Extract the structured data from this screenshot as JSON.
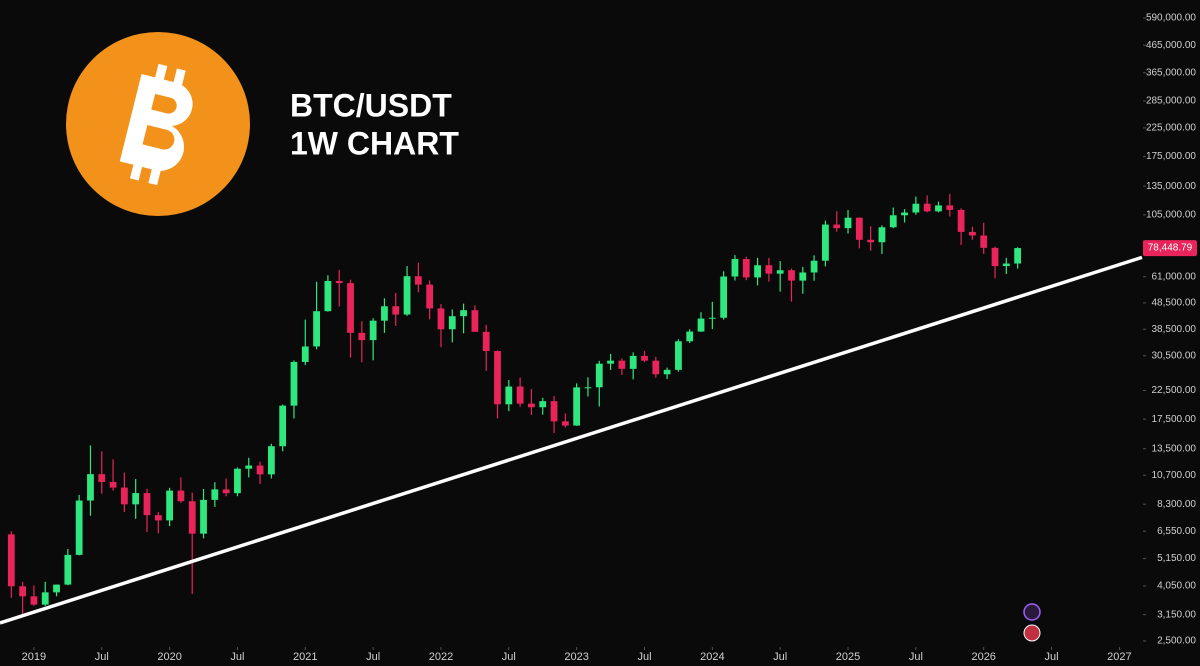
{
  "chart_data": {
    "type": "candlestick",
    "title": "BTC/USDT",
    "subtitle": "1W CHART",
    "log_scale": true,
    "up_color": "#2ee87f",
    "down_color": "#e8245a",
    "x": [
      "2018-11",
      "2018-12",
      "2019-01",
      "2019-02",
      "2019-03",
      "2019-04",
      "2019-05",
      "2019-06",
      "2019-07",
      "2019-08",
      "2019-09",
      "2019-10",
      "2019-11",
      "2019-12",
      "2020-01",
      "2020-02",
      "2020-03",
      "2020-04",
      "2020-05",
      "2020-06",
      "2020-07",
      "2020-08",
      "2020-09",
      "2020-10",
      "2020-11",
      "2020-12",
      "2021-01",
      "2021-02",
      "2021-03",
      "2021-04",
      "2021-05",
      "2021-06",
      "2021-07",
      "2021-08",
      "2021-09",
      "2021-10",
      "2021-11",
      "2021-12",
      "2022-01",
      "2022-02",
      "2022-03",
      "2022-04",
      "2022-05",
      "2022-06",
      "2022-07",
      "2022-08",
      "2022-09",
      "2022-10",
      "2022-11",
      "2022-12",
      "2023-01",
      "2023-02",
      "2023-03",
      "2023-04",
      "2023-05",
      "2023-06",
      "2023-07",
      "2023-08",
      "2023-09",
      "2023-10",
      "2023-11",
      "2023-12",
      "2024-01",
      "2024-02",
      "2024-03",
      "2024-04",
      "2024-05",
      "2024-06",
      "2024-07",
      "2024-08",
      "2024-09",
      "2024-10",
      "2024-11",
      "2024-12",
      "2025-01",
      "2025-02",
      "2025-03",
      "2025-04",
      "2025-05",
      "2025-06",
      "2025-07",
      "2025-08",
      "2025-09",
      "2025-10",
      "2025-11",
      "2025-12",
      "2026-01",
      "2026-02",
      "2026-03",
      "2026-04"
    ],
    "open": [
      6370,
      4040,
      3700,
      3440,
      3830,
      4100,
      5320,
      8570,
      10800,
      10080,
      9600,
      8290,
      9150,
      7540,
      7200,
      9350,
      8520,
      6410,
      8620,
      9450,
      9140,
      11330,
      11650,
      10780,
      13800,
      19700,
      28900,
      33100,
      45100,
      58800,
      57700,
      37300,
      35000,
      41500,
      47100,
      43800,
      61300,
      56950,
      46200,
      38480,
      43160,
      45510,
      37630,
      31800,
      19930,
      23290,
      20050,
      19420,
      20490,
      17160,
      16540,
      23120,
      23140,
      28460,
      29230,
      27200,
      30470,
      29230,
      25930,
      26960,
      34640,
      37720,
      42280,
      42580,
      61130,
      71280,
      60640,
      67490,
      62680,
      64600,
      58970,
      63330,
      70210,
      96410,
      93430,
      102400,
      84350,
      82550,
      94170,
      104600,
      107150,
      115760,
      108250,
      114050,
      109600,
      90400,
      87600,
      78600,
      67000,
      68500
    ],
    "high": [
      6550,
      4200,
      4070,
      4200,
      4100,
      5600,
      9000,
      13900,
      13200,
      12300,
      10950,
      10350,
      9500,
      7750,
      9580,
      10500,
      9190,
      9480,
      10070,
      10400,
      11450,
      12470,
      12050,
      14100,
      19900,
      29300,
      41900,
      58400,
      61800,
      64800,
      59500,
      41300,
      42400,
      50500,
      52900,
      67000,
      69000,
      59050,
      47990,
      45800,
      48200,
      47450,
      40000,
      31950,
      24670,
      25200,
      22800,
      21100,
      21450,
      18400,
      23950,
      25250,
      29180,
      31000,
      29820,
      31430,
      31800,
      30200,
      27500,
      35280,
      38450,
      44700,
      48970,
      64000,
      73780,
      72800,
      71950,
      72000,
      70000,
      65600,
      66500,
      73620,
      99800,
      108350,
      109580,
      102750,
      95000,
      95750,
      111980,
      110400,
      123200,
      124500,
      117900,
      126200,
      111200,
      94600,
      97900,
      79500,
      72000,
      79000
    ],
    "low": [
      3650,
      3150,
      3400,
      3400,
      3700,
      4080,
      5300,
      7500,
      9100,
      9350,
      7750,
      7300,
      6500,
      6430,
      6850,
      8400,
      3780,
      6150,
      8100,
      8900,
      8900,
      10500,
      9900,
      10400,
      13200,
      17600,
      28100,
      32300,
      44900,
      47000,
      30000,
      28800,
      29300,
      37300,
      39600,
      43300,
      53250,
      42000,
      32900,
      34300,
      37150,
      37700,
      26700,
      17600,
      18780,
      19520,
      18150,
      18200,
      15480,
      16260,
      16500,
      21350,
      19550,
      26940,
      25810,
      24800,
      28860,
      25170,
      24900,
      26540,
      34100,
      37600,
      38550,
      41880,
      59000,
      59190,
      56550,
      58400,
      53500,
      49000,
      52550,
      58900,
      66800,
      90500,
      89150,
      78250,
      76600,
      74500,
      93350,
      98200,
      105100,
      107300,
      107300,
      103500,
      80600,
      84400,
      74500,
      60100,
      62500,
      65500
    ],
    "close": [
      4040,
      3700,
      3440,
      3830,
      4100,
      5320,
      8570,
      10800,
      10080,
      9600,
      8290,
      9150,
      7540,
      7200,
      9350,
      8520,
      6410,
      8620,
      9450,
      9140,
      11330,
      11650,
      10780,
      13800,
      19700,
      28900,
      33100,
      45100,
      58800,
      57700,
      37300,
      35000,
      41500,
      47100,
      43800,
      61300,
      56950,
      46200,
      38480,
      43160,
      45510,
      37630,
      31800,
      19930,
      23290,
      20050,
      19420,
      20490,
      17160,
      16540,
      23120,
      23140,
      28460,
      29230,
      27200,
      30470,
      29230,
      25930,
      26960,
      34640,
      37720,
      42280,
      42580,
      61130,
      71280,
      60640,
      67490,
      62680,
      64600,
      58970,
      63330,
      70210,
      96410,
      93430,
      102400,
      84350,
      82550,
      94170,
      104600,
      107150,
      115760,
      108250,
      114050,
      109600,
      90400,
      87600,
      78600,
      67000,
      68500,
      78448.79
    ],
    "last_price": {
      "value": 78448.79,
      "label": "78,448.79"
    },
    "trendline": {
      "x": [
        "2018-10",
        "2027-03"
      ],
      "values": [
        2930,
        72300
      ],
      "color": "#ffffff"
    },
    "xlim": [
      "2018-10",
      "2027-03"
    ],
    "xticks": [
      {
        "value": "2019-01",
        "label": "2019"
      },
      {
        "value": "2019-07",
        "label": "Jul"
      },
      {
        "value": "2020-01",
        "label": "2020"
      },
      {
        "value": "2020-07",
        "label": "Jul"
      },
      {
        "value": "2021-01",
        "label": "2021"
      },
      {
        "value": "2021-07",
        "label": "Jul"
      },
      {
        "value": "2022-01",
        "label": "2022"
      },
      {
        "value": "2022-07",
        "label": "Jul"
      },
      {
        "value": "2023-01",
        "label": "2023"
      },
      {
        "value": "2023-07",
        "label": "Jul"
      },
      {
        "value": "2024-01",
        "label": "2024"
      },
      {
        "value": "2024-07",
        "label": "Jul"
      },
      {
        "value": "2025-01",
        "label": "2025"
      },
      {
        "value": "2025-07",
        "label": "Jul"
      },
      {
        "value": "2026-01",
        "label": "2026"
      },
      {
        "value": "2026-07",
        "label": "Jul"
      },
      {
        "value": "2027-01",
        "label": "2027"
      }
    ],
    "ylim": [
      2414,
      691000
    ],
    "yticks": [
      {
        "value": 590000,
        "label": "590,000.00"
      },
      {
        "value": 465000,
        "label": "465,000.00"
      },
      {
        "value": 365000,
        "label": "365,000.00"
      },
      {
        "value": 285000,
        "label": "285,000.00"
      },
      {
        "value": 225000,
        "label": "225,000.00"
      },
      {
        "value": 175000,
        "label": "175,000.00"
      },
      {
        "value": 135000,
        "label": "135,000.00"
      },
      {
        "value": 105000,
        "label": "105,000.00"
      },
      {
        "value": 61000,
        "label": "61,000.00"
      },
      {
        "value": 48500,
        "label": "48,500.00"
      },
      {
        "value": 38500,
        "label": "38,500.00"
      },
      {
        "value": 30500,
        "label": "30,500.00"
      },
      {
        "value": 22500,
        "label": "22,500.00"
      },
      {
        "value": 17500,
        "label": "17,500.00"
      },
      {
        "value": 13500,
        "label": "13,500.00"
      },
      {
        "value": 10700,
        "label": "10,700.00"
      },
      {
        "value": 8300,
        "label": "8,300.00"
      },
      {
        "value": 6550,
        "label": "6,550.00"
      },
      {
        "value": 5150,
        "label": "5,150.00"
      },
      {
        "value": 4050,
        "label": "4,050.00"
      },
      {
        "value": 3150,
        "label": "3,150.00"
      },
      {
        "value": 2500,
        "label": "2,500.00"
      }
    ],
    "grid": false
  }
}
